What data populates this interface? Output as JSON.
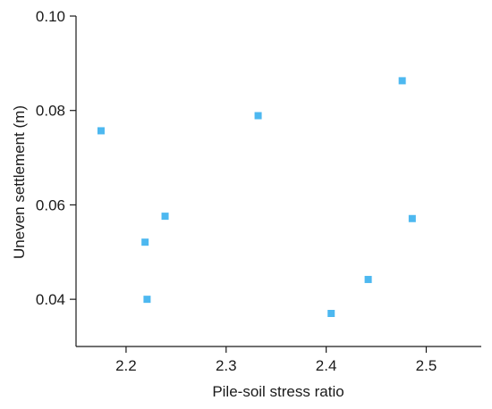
{
  "chart_data": {
    "type": "scatter",
    "xlabel": "Pile-soil stress ratio",
    "ylabel": "Uneven settlement (m)",
    "xlim": [
      2.15,
      2.555
    ],
    "ylim": [
      0.03,
      0.1
    ],
    "xticks": [
      2.2,
      2.3,
      2.4,
      2.5
    ],
    "yticks": [
      0.04,
      0.06,
      0.08,
      0.1
    ],
    "xtick_labels": [
      "2.2",
      "2.3",
      "2.4",
      "2.5"
    ],
    "ytick_labels": [
      "0.04",
      "0.06",
      "0.08",
      "0.10"
    ],
    "grid": false,
    "marker": "square",
    "marker_color": "#4db8f0",
    "series": [
      {
        "points": [
          {
            "x": 2.175,
            "y": 0.0757
          },
          {
            "x": 2.219,
            "y": 0.0521
          },
          {
            "x": 2.221,
            "y": 0.04
          },
          {
            "x": 2.239,
            "y": 0.0576
          },
          {
            "x": 2.332,
            "y": 0.0789
          },
          {
            "x": 2.405,
            "y": 0.037
          },
          {
            "x": 2.442,
            "y": 0.0442
          },
          {
            "x": 2.476,
            "y": 0.0863
          },
          {
            "x": 2.486,
            "y": 0.0571
          }
        ]
      }
    ]
  }
}
